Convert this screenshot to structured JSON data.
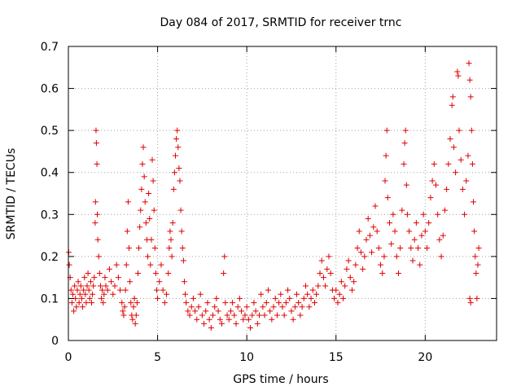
{
  "chart_data": {
    "type": "scatter",
    "title": "Day 084 of 2017, SRMTID for receiver trnc",
    "xlabel": "GPS time / hours",
    "ylabel": "SRMTID / TECUs",
    "xlim": [
      0,
      24
    ],
    "ylim": [
      0,
      0.7
    ],
    "xticks": [
      0,
      5,
      10,
      15,
      20
    ],
    "yticks": [
      0,
      0.1,
      0.2,
      0.3,
      0.4,
      0.5,
      0.6,
      0.7
    ],
    "xtick_labels": [
      "0",
      "5",
      "10",
      "15",
      "20"
    ],
    "ytick_labels": [
      "0",
      "0.1",
      "0.2",
      "0.3",
      "0.4",
      "0.5",
      "0.6",
      "0.7"
    ],
    "grid": true,
    "marker": "+",
    "color": "#e00000",
    "series": [
      {
        "name": "SRMTID",
        "points": [
          [
            0.02,
            0.21
          ],
          [
            0.05,
            0.18
          ],
          [
            0.1,
            0.15
          ],
          [
            0.15,
            0.12
          ],
          [
            0.2,
            0.09
          ],
          [
            0.25,
            0.11
          ],
          [
            0.3,
            0.07
          ],
          [
            0.35,
            0.13
          ],
          [
            0.4,
            0.1
          ],
          [
            0.45,
            0.08
          ],
          [
            0.5,
            0.12
          ],
          [
            0.55,
            0.14
          ],
          [
            0.6,
            0.09
          ],
          [
            0.65,
            0.11
          ],
          [
            0.7,
            0.13
          ],
          [
            0.75,
            0.1
          ],
          [
            0.8,
            0.08
          ],
          [
            0.85,
            0.12
          ],
          [
            0.9,
            0.15
          ],
          [
            0.95,
            0.11
          ],
          [
            1.0,
            0.09
          ],
          [
            1.05,
            0.13
          ],
          [
            1.1,
            0.16
          ],
          [
            1.15,
            0.12
          ],
          [
            1.2,
            0.1
          ],
          [
            1.25,
            0.14
          ],
          [
            1.3,
            0.09
          ],
          [
            1.35,
            0.11
          ],
          [
            1.4,
            0.13
          ],
          [
            1.45,
            0.15
          ],
          [
            1.5,
            0.28
          ],
          [
            1.52,
            0.33
          ],
          [
            1.55,
            0.5
          ],
          [
            1.57,
            0.47
          ],
          [
            1.6,
            0.42
          ],
          [
            1.62,
            0.3
          ],
          [
            1.65,
            0.24
          ],
          [
            1.7,
            0.2
          ],
          [
            1.75,
            0.16
          ],
          [
            1.8,
            0.13
          ],
          [
            1.85,
            0.1
          ],
          [
            1.9,
            0.12
          ],
          [
            1.95,
            0.09
          ],
          [
            2.0,
            0.11
          ],
          [
            2.05,
            0.15
          ],
          [
            2.1,
            0.13
          ],
          [
            2.2,
            0.12
          ],
          [
            2.3,
            0.17
          ],
          [
            2.4,
            0.14
          ],
          [
            2.5,
            0.11
          ],
          [
            2.6,
            0.13
          ],
          [
            2.7,
            0.18
          ],
          [
            2.8,
            0.15
          ],
          [
            2.9,
            0.12
          ],
          [
            3.0,
            0.09
          ],
          [
            3.05,
            0.07
          ],
          [
            3.1,
            0.06
          ],
          [
            3.15,
            0.08
          ],
          [
            3.2,
            0.12
          ],
          [
            3.25,
            0.18
          ],
          [
            3.3,
            0.26
          ],
          [
            3.35,
            0.33
          ],
          [
            3.4,
            0.22
          ],
          [
            3.45,
            0.14
          ],
          [
            3.5,
            0.09
          ],
          [
            3.55,
            0.06
          ],
          [
            3.6,
            0.05
          ],
          [
            3.65,
            0.08
          ],
          [
            3.7,
            0.1
          ],
          [
            3.75,
            0.04
          ],
          [
            3.8,
            0.06
          ],
          [
            3.85,
            0.09
          ],
          [
            3.9,
            0.16
          ],
          [
            3.95,
            0.22
          ],
          [
            4.0,
            0.27
          ],
          [
            4.05,
            0.31
          ],
          [
            4.1,
            0.36
          ],
          [
            4.15,
            0.42
          ],
          [
            4.2,
            0.46
          ],
          [
            4.25,
            0.39
          ],
          [
            4.3,
            0.33
          ],
          [
            4.35,
            0.28
          ],
          [
            4.4,
            0.24
          ],
          [
            4.45,
            0.2
          ],
          [
            4.5,
            0.35
          ],
          [
            4.55,
            0.29
          ],
          [
            4.6,
            0.18
          ],
          [
            4.65,
            0.24
          ],
          [
            4.7,
            0.43
          ],
          [
            4.75,
            0.38
          ],
          [
            4.8,
            0.31
          ],
          [
            4.85,
            0.22
          ],
          [
            4.9,
            0.16
          ],
          [
            4.95,
            0.12
          ],
          [
            5.0,
            0.1
          ],
          [
            5.1,
            0.14
          ],
          [
            5.2,
            0.18
          ],
          [
            5.3,
            0.12
          ],
          [
            5.4,
            0.09
          ],
          [
            5.5,
            0.11
          ],
          [
            5.6,
            0.16
          ],
          [
            5.65,
            0.22
          ],
          [
            5.7,
            0.26
          ],
          [
            5.75,
            0.24
          ],
          [
            5.8,
            0.2
          ],
          [
            5.85,
            0.28
          ],
          [
            5.9,
            0.36
          ],
          [
            5.95,
            0.4
          ],
          [
            6.0,
            0.44
          ],
          [
            6.05,
            0.48
          ],
          [
            6.1,
            0.5
          ],
          [
            6.15,
            0.46
          ],
          [
            6.2,
            0.41
          ],
          [
            6.25,
            0.38
          ],
          [
            6.3,
            0.31
          ],
          [
            6.35,
            0.26
          ],
          [
            6.4,
            0.22
          ],
          [
            6.45,
            0.19
          ],
          [
            6.5,
            0.14
          ],
          [
            6.55,
            0.11
          ],
          [
            6.6,
            0.09
          ],
          [
            6.7,
            0.07
          ],
          [
            6.8,
            0.06
          ],
          [
            6.9,
            0.08
          ],
          [
            7.0,
            0.1
          ],
          [
            7.1,
            0.07
          ],
          [
            7.2,
            0.05
          ],
          [
            7.3,
            0.08
          ],
          [
            7.4,
            0.11
          ],
          [
            7.5,
            0.06
          ],
          [
            7.6,
            0.04
          ],
          [
            7.7,
            0.07
          ],
          [
            7.8,
            0.09
          ],
          [
            7.9,
            0.05
          ],
          [
            8.0,
            0.03
          ],
          [
            8.1,
            0.06
          ],
          [
            8.2,
            0.08
          ],
          [
            8.3,
            0.1
          ],
          [
            8.4,
            0.07
          ],
          [
            8.5,
            0.05
          ],
          [
            8.6,
            0.04
          ],
          [
            8.7,
            0.16
          ],
          [
            8.75,
            0.2
          ],
          [
            8.8,
            0.09
          ],
          [
            8.9,
            0.06
          ],
          [
            9.0,
            0.05
          ],
          [
            9.1,
            0.07
          ],
          [
            9.2,
            0.09
          ],
          [
            9.3,
            0.06
          ],
          [
            9.4,
            0.04
          ],
          [
            9.5,
            0.08
          ],
          [
            9.6,
            0.1
          ],
          [
            9.7,
            0.07
          ],
          [
            9.8,
            0.05
          ],
          [
            9.9,
            0.06
          ],
          [
            10.0,
            0.08
          ],
          [
            10.1,
            0.05
          ],
          [
            10.2,
            0.03
          ],
          [
            10.3,
            0.06
          ],
          [
            10.4,
            0.09
          ],
          [
            10.5,
            0.07
          ],
          [
            10.6,
            0.04
          ],
          [
            10.7,
            0.06
          ],
          [
            10.8,
            0.11
          ],
          [
            10.9,
            0.08
          ],
          [
            11.0,
            0.06
          ],
          [
            11.1,
            0.09
          ],
          [
            11.2,
            0.12
          ],
          [
            11.3,
            0.07
          ],
          [
            11.4,
            0.05
          ],
          [
            11.5,
            0.08
          ],
          [
            11.6,
            0.1
          ],
          [
            11.7,
            0.06
          ],
          [
            11.8,
            0.09
          ],
          [
            11.9,
            0.11
          ],
          [
            12.0,
            0.08
          ],
          [
            12.1,
            0.06
          ],
          [
            12.2,
            0.09
          ],
          [
            12.3,
            0.12
          ],
          [
            12.4,
            0.1
          ],
          [
            12.5,
            0.07
          ],
          [
            12.6,
            0.05
          ],
          [
            12.7,
            0.08
          ],
          [
            12.8,
            0.11
          ],
          [
            12.9,
            0.09
          ],
          [
            13.0,
            0.06
          ],
          [
            13.1,
            0.08
          ],
          [
            13.2,
            0.1
          ],
          [
            13.3,
            0.13
          ],
          [
            13.4,
            0.11
          ],
          [
            13.5,
            0.08
          ],
          [
            13.6,
            0.1
          ],
          [
            13.7,
            0.12
          ],
          [
            13.8,
            0.09
          ],
          [
            13.9,
            0.11
          ],
          [
            14.0,
            0.13
          ],
          [
            14.1,
            0.16
          ],
          [
            14.2,
            0.19
          ],
          [
            14.3,
            0.15
          ],
          [
            14.4,
            0.13
          ],
          [
            14.5,
            0.17
          ],
          [
            14.6,
            0.2
          ],
          [
            14.7,
            0.16
          ],
          [
            14.8,
            0.12
          ],
          [
            14.9,
            0.1
          ],
          [
            15.0,
            0.12
          ],
          [
            15.1,
            0.09
          ],
          [
            15.2,
            0.11
          ],
          [
            15.3,
            0.14
          ],
          [
            15.4,
            0.1
          ],
          [
            15.5,
            0.13
          ],
          [
            15.6,
            0.17
          ],
          [
            15.7,
            0.19
          ],
          [
            15.8,
            0.15
          ],
          [
            15.9,
            0.12
          ],
          [
            16.0,
            0.14
          ],
          [
            16.1,
            0.18
          ],
          [
            16.2,
            0.22
          ],
          [
            16.3,
            0.26
          ],
          [
            16.4,
            0.21
          ],
          [
            16.5,
            0.17
          ],
          [
            16.6,
            0.2
          ],
          [
            16.7,
            0.24
          ],
          [
            16.8,
            0.29
          ],
          [
            16.9,
            0.25
          ],
          [
            17.0,
            0.21
          ],
          [
            17.1,
            0.27
          ],
          [
            17.2,
            0.32
          ],
          [
            17.3,
            0.26
          ],
          [
            17.4,
            0.22
          ],
          [
            17.5,
            0.18
          ],
          [
            17.6,
            0.16
          ],
          [
            17.7,
            0.2
          ],
          [
            17.75,
            0.38
          ],
          [
            17.8,
            0.44
          ],
          [
            17.85,
            0.5
          ],
          [
            17.9,
            0.34
          ],
          [
            18.0,
            0.28
          ],
          [
            18.1,
            0.23
          ],
          [
            18.2,
            0.3
          ],
          [
            18.3,
            0.26
          ],
          [
            18.4,
            0.2
          ],
          [
            18.5,
            0.16
          ],
          [
            18.6,
            0.22
          ],
          [
            18.7,
            0.31
          ],
          [
            18.8,
            0.42
          ],
          [
            18.85,
            0.47
          ],
          [
            18.9,
            0.5
          ],
          [
            18.95,
            0.37
          ],
          [
            19.0,
            0.3
          ],
          [
            19.1,
            0.26
          ],
          [
            19.2,
            0.22
          ],
          [
            19.3,
            0.19
          ],
          [
            19.4,
            0.24
          ],
          [
            19.5,
            0.28
          ],
          [
            19.6,
            0.22
          ],
          [
            19.7,
            0.18
          ],
          [
            19.8,
            0.25
          ],
          [
            19.9,
            0.3
          ],
          [
            20.0,
            0.26
          ],
          [
            20.1,
            0.22
          ],
          [
            20.2,
            0.28
          ],
          [
            20.3,
            0.34
          ],
          [
            20.4,
            0.38
          ],
          [
            20.5,
            0.42
          ],
          [
            20.6,
            0.37
          ],
          [
            20.7,
            0.3
          ],
          [
            20.8,
            0.24
          ],
          [
            20.9,
            0.2
          ],
          [
            21.0,
            0.25
          ],
          [
            21.1,
            0.31
          ],
          [
            21.2,
            0.36
          ],
          [
            21.3,
            0.42
          ],
          [
            21.4,
            0.48
          ],
          [
            21.5,
            0.56
          ],
          [
            21.55,
            0.58
          ],
          [
            21.6,
            0.46
          ],
          [
            21.7,
            0.4
          ],
          [
            21.8,
            0.64
          ],
          [
            21.85,
            0.63
          ],
          [
            21.9,
            0.5
          ],
          [
            22.0,
            0.43
          ],
          [
            22.1,
            0.36
          ],
          [
            22.2,
            0.3
          ],
          [
            22.3,
            0.38
          ],
          [
            22.4,
            0.44
          ],
          [
            22.45,
            0.66
          ],
          [
            22.5,
            0.62
          ],
          [
            22.55,
            0.58
          ],
          [
            22.6,
            0.5
          ],
          [
            22.65,
            0.42
          ],
          [
            22.7,
            0.33
          ],
          [
            22.75,
            0.26
          ],
          [
            22.8,
            0.2
          ],
          [
            22.85,
            0.16
          ],
          [
            22.9,
            0.1
          ],
          [
            22.95,
            0.18
          ],
          [
            23.0,
            0.22
          ],
          [
            22.5,
            0.1
          ],
          [
            22.55,
            0.09
          ]
        ]
      }
    ]
  }
}
